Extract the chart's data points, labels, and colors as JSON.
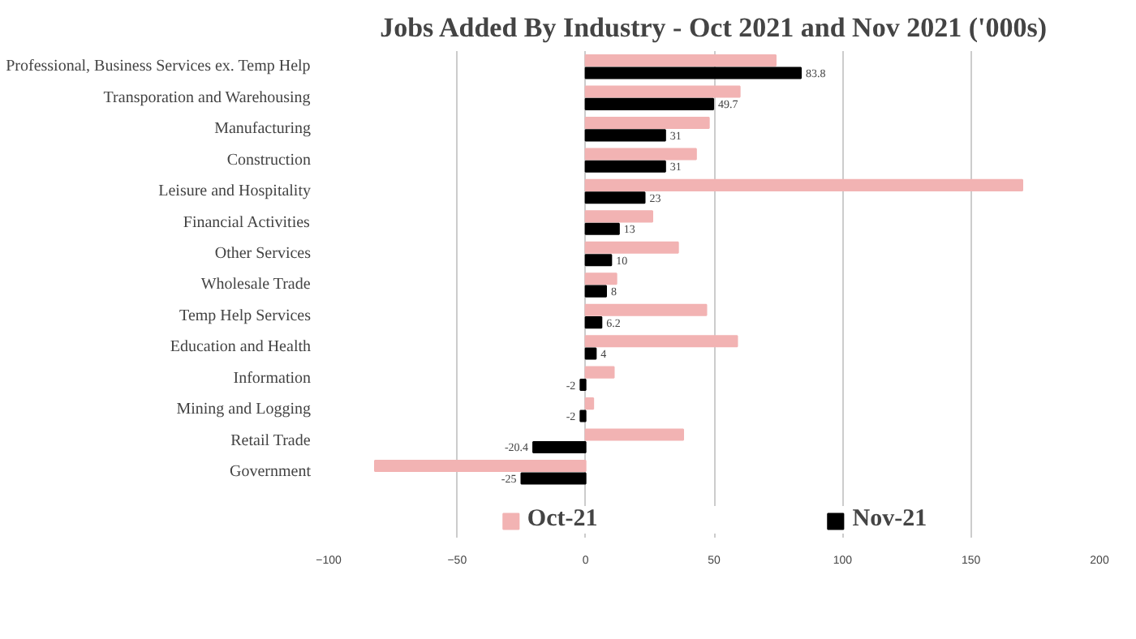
{
  "chart_data": {
    "type": "bar",
    "orientation": "horizontal",
    "title": "Jobs Added By Industry - Oct 2021 and Nov 2021 ('000s)",
    "categories": [
      "Professional, Business Services ex. Temp Help",
      "Transporation and Warehousing",
      "Manufacturing",
      "Construction",
      "Leisure and Hospitality",
      "Financial Activities",
      "Other Services",
      "Wholesale Trade",
      "Temp Help Services",
      "Education and Health",
      "Information",
      "Mining and Logging",
      "Retail Trade",
      "Government"
    ],
    "series": [
      {
        "name": "Oct-21",
        "color": "#f2b3b3",
        "values": [
          74,
          60,
          48,
          43,
          170,
          26,
          36,
          12,
          47,
          59,
          11,
          3,
          38,
          -82
        ]
      },
      {
        "name": "Nov-21",
        "color": "#000000",
        "values": [
          83.8,
          49.7,
          31,
          31,
          23,
          13,
          10,
          8,
          6.2,
          4,
          -2,
          -2,
          -20.4,
          -25
        ],
        "value_labels": [
          "83.8",
          "49.7",
          "31",
          "31",
          "23",
          "13",
          "10",
          "8",
          "6.2",
          "4",
          "-2",
          "-2",
          "-20.4",
          "-25"
        ]
      }
    ],
    "xlim": [
      -100,
      200
    ],
    "xticks": [
      -100,
      -50,
      0,
      50,
      100,
      150,
      200
    ],
    "grid": "x",
    "legend": "bottom"
  }
}
